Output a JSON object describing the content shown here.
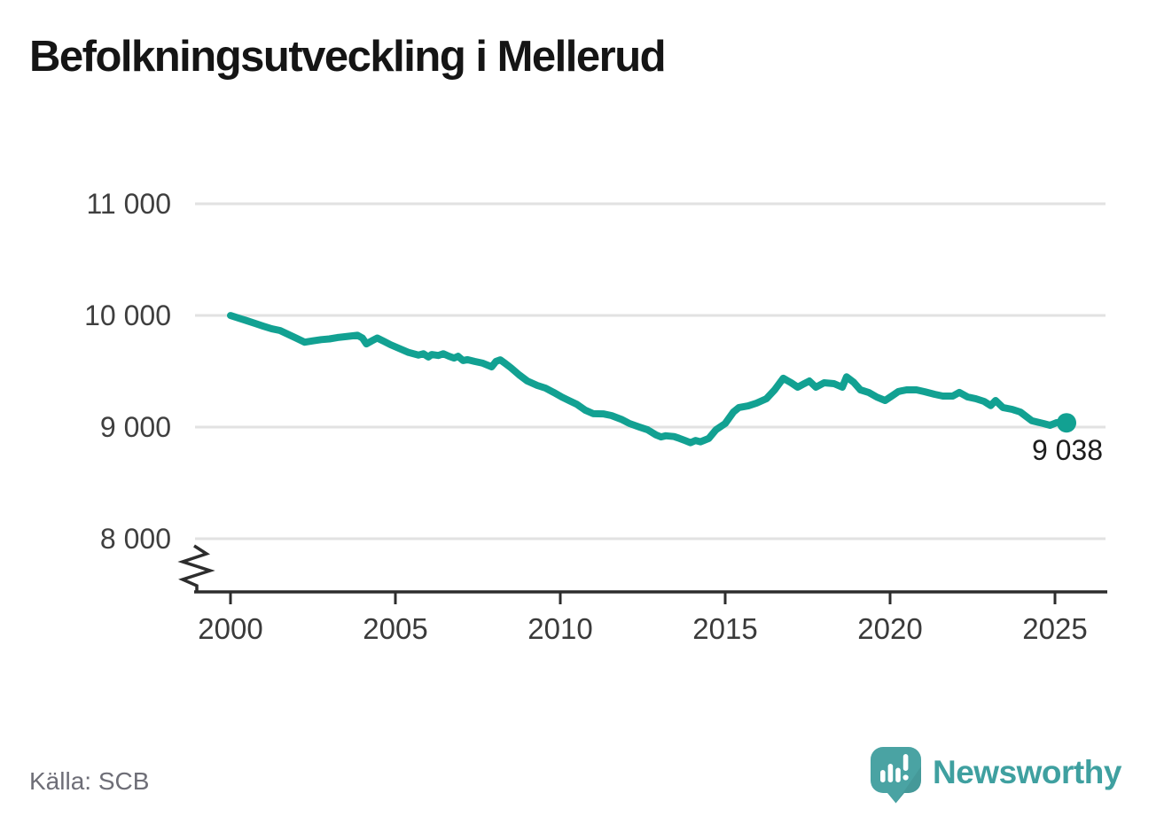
{
  "title": "Befolkningsutveckling i Mellerud",
  "source": {
    "label": "Källa: SCB"
  },
  "branding": {
    "name": "Newsworthy",
    "icon": "newsworthy-speech-bubble-bar-chart-icon",
    "text_color": "#3fa0a0",
    "icon_color": "#4aa3a3"
  },
  "chart_data": {
    "type": "line",
    "title": "Befolkningsutveckling i Mellerud",
    "xlabel": "",
    "ylabel": "",
    "x_ticks": [
      2000,
      2005,
      2010,
      2015,
      2020,
      2025
    ],
    "x_tick_labels": [
      "2000",
      "2005",
      "2010",
      "2015",
      "2020",
      "2025"
    ],
    "y_ticks": [
      11000,
      10000,
      9000,
      8000
    ],
    "y_tick_labels": [
      "11 000",
      "10 000",
      "9 000",
      "8 000"
    ],
    "xlim": [
      1998.9,
      2026.6
    ],
    "ylim": [
      8000,
      11000
    ],
    "axis_break_bottom_left": true,
    "grid": "horizontal",
    "grid_color": "#e2e2e2",
    "axis_color": "#2d2d2d",
    "line_color": "#12a192",
    "label_color": "#3f3f3f",
    "last_point_label": "9 038",
    "last_value": 9038,
    "legend": "none",
    "series": [
      {
        "name": "Befolkning",
        "points": [
          [
            2000.0,
            9999
          ],
          [
            2000.25,
            9975
          ],
          [
            2000.5,
            9952
          ],
          [
            2000.75,
            9928
          ],
          [
            2001.0,
            9903
          ],
          [
            2001.25,
            9880
          ],
          [
            2001.5,
            9865
          ],
          [
            2001.75,
            9830
          ],
          [
            2002.0,
            9795
          ],
          [
            2002.25,
            9760
          ],
          [
            2002.5,
            9772
          ],
          [
            2002.75,
            9783
          ],
          [
            2003.0,
            9790
          ],
          [
            2003.25,
            9802
          ],
          [
            2003.5,
            9810
          ],
          [
            2003.85,
            9822
          ],
          [
            2004.0,
            9798
          ],
          [
            2004.12,
            9745
          ],
          [
            2004.3,
            9775
          ],
          [
            2004.45,
            9798
          ],
          [
            2004.65,
            9768
          ],
          [
            2004.85,
            9738
          ],
          [
            2005.1,
            9706
          ],
          [
            2005.4,
            9668
          ],
          [
            2005.7,
            9645
          ],
          [
            2005.85,
            9656
          ],
          [
            2006.0,
            9628
          ],
          [
            2006.1,
            9650
          ],
          [
            2006.3,
            9641
          ],
          [
            2006.45,
            9657
          ],
          [
            2006.62,
            9635
          ],
          [
            2006.78,
            9618
          ],
          [
            2006.9,
            9634
          ],
          [
            2007.05,
            9596
          ],
          [
            2007.18,
            9604
          ],
          [
            2007.4,
            9588
          ],
          [
            2007.65,
            9572
          ],
          [
            2007.92,
            9540
          ],
          [
            2008.05,
            9588
          ],
          [
            2008.18,
            9602
          ],
          [
            2008.32,
            9572
          ],
          [
            2008.5,
            9532
          ],
          [
            2008.75,
            9468
          ],
          [
            2009.0,
            9413
          ],
          [
            2009.3,
            9373
          ],
          [
            2009.55,
            9349
          ],
          [
            2009.8,
            9310
          ],
          [
            2010.05,
            9268
          ],
          [
            2010.25,
            9240
          ],
          [
            2010.5,
            9205
          ],
          [
            2010.75,
            9152
          ],
          [
            2011.0,
            9120
          ],
          [
            2011.3,
            9118
          ],
          [
            2011.55,
            9103
          ],
          [
            2011.85,
            9070
          ],
          [
            2012.1,
            9032
          ],
          [
            2012.4,
            9000
          ],
          [
            2012.65,
            8975
          ],
          [
            2012.9,
            8930
          ],
          [
            2013.05,
            8912
          ],
          [
            2013.2,
            8922
          ],
          [
            2013.45,
            8915
          ],
          [
            2013.6,
            8900
          ],
          [
            2013.78,
            8880
          ],
          [
            2013.95,
            8860
          ],
          [
            2014.1,
            8880
          ],
          [
            2014.25,
            8868
          ],
          [
            2014.5,
            8898
          ],
          [
            2014.72,
            8975
          ],
          [
            2015.0,
            9032
          ],
          [
            2015.25,
            9135
          ],
          [
            2015.42,
            9175
          ],
          [
            2015.7,
            9190
          ],
          [
            2015.95,
            9214
          ],
          [
            2016.25,
            9254
          ],
          [
            2016.5,
            9333
          ],
          [
            2016.76,
            9437
          ],
          [
            2017.0,
            9397
          ],
          [
            2017.2,
            9357
          ],
          [
            2017.4,
            9390
          ],
          [
            2017.55,
            9413
          ],
          [
            2017.75,
            9357
          ],
          [
            2018.0,
            9397
          ],
          [
            2018.3,
            9389
          ],
          [
            2018.55,
            9357
          ],
          [
            2018.68,
            9450
          ],
          [
            2018.9,
            9400
          ],
          [
            2019.1,
            9333
          ],
          [
            2019.35,
            9310
          ],
          [
            2019.6,
            9268
          ],
          [
            2019.85,
            9238
          ],
          [
            2020.05,
            9278
          ],
          [
            2020.25,
            9318
          ],
          [
            2020.5,
            9333
          ],
          [
            2020.8,
            9333
          ],
          [
            2021.05,
            9317
          ],
          [
            2021.35,
            9294
          ],
          [
            2021.6,
            9278
          ],
          [
            2021.9,
            9278
          ],
          [
            2022.1,
            9310
          ],
          [
            2022.35,
            9270
          ],
          [
            2022.6,
            9254
          ],
          [
            2022.85,
            9230
          ],
          [
            2023.05,
            9192
          ],
          [
            2023.2,
            9238
          ],
          [
            2023.42,
            9175
          ],
          [
            2023.7,
            9159
          ],
          [
            2023.95,
            9135
          ],
          [
            2024.3,
            9056
          ],
          [
            2024.65,
            9032
          ],
          [
            2024.85,
            9016
          ],
          [
            2025.05,
            9040
          ],
          [
            2025.35,
            9038
          ]
        ]
      }
    ]
  }
}
